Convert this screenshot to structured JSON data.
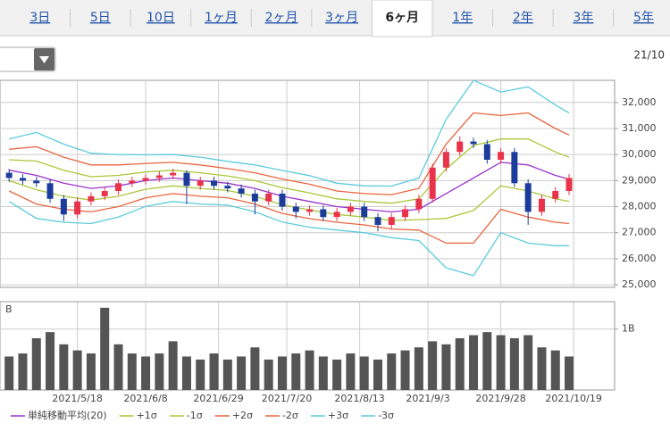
{
  "tabs": [
    "3日",
    "5日",
    "10日",
    "1ヶ月",
    "2ヶ月",
    "3ヶ月",
    "6ヶ月",
    "1年",
    "2年",
    "3年",
    "5年"
  ],
  "active_tab": 6,
  "date_label": "21/10",
  "chart_data": [
    {
      "type": "candlestick",
      "x": [
        0,
        3,
        6,
        9,
        12,
        15,
        18,
        21,
        24,
        27,
        30,
        33,
        36,
        39,
        42,
        45,
        48,
        51,
        54,
        57,
        60,
        63,
        66,
        69,
        72,
        75,
        78,
        81,
        84,
        87,
        90,
        93,
        96,
        99,
        102,
        105,
        108,
        111,
        114,
        117,
        120,
        123
      ],
      "open": [
        29300,
        29100,
        29000,
        28900,
        28300,
        27700,
        28200,
        28400,
        28600,
        28900,
        29000,
        29100,
        29200,
        29300,
        28800,
        29000,
        28800,
        28700,
        28500,
        28200,
        28500,
        28000,
        27800,
        27900,
        27600,
        27800,
        28000,
        27600,
        27300,
        27600,
        27900,
        28300,
        29500,
        30100,
        30500,
        30400,
        29800,
        30100,
        28900,
        27800,
        28300,
        28600
      ],
      "high": [
        29450,
        29250,
        29150,
        29050,
        28450,
        28350,
        28550,
        28750,
        29050,
        29150,
        29250,
        29350,
        29450,
        29400,
        29150,
        29150,
        28950,
        28850,
        28650,
        28650,
        28650,
        28150,
        28050,
        28050,
        27950,
        28150,
        28150,
        27750,
        27750,
        28050,
        28450,
        29650,
        30250,
        30700,
        30650,
        30550,
        30250,
        30250,
        29050,
        28450,
        28750,
        29250
      ],
      "low": [
        28950,
        28850,
        28750,
        28150,
        27450,
        27550,
        28050,
        28250,
        28450,
        28750,
        28850,
        28950,
        29050,
        28100,
        28650,
        28650,
        28550,
        28350,
        27700,
        28050,
        27850,
        27550,
        27650,
        27450,
        27450,
        27650,
        27450,
        27050,
        27150,
        27450,
        27750,
        28150,
        29350,
        29950,
        30250,
        29650,
        29650,
        28750,
        27300,
        27650,
        28150,
        28450
      ],
      "close": [
        29100,
        29000,
        28900,
        28300,
        27700,
        28200,
        28400,
        28600,
        28900,
        29000,
        29100,
        29200,
        29300,
        28800,
        29000,
        28800,
        28700,
        28500,
        28200,
        28500,
        28000,
        27800,
        27900,
        27600,
        27800,
        28000,
        27600,
        27300,
        27600,
        27900,
        28300,
        29500,
        30100,
        30500,
        30400,
        29800,
        30100,
        28900,
        27800,
        28300,
        28600,
        29100
      ],
      "up_color": "#e8334a",
      "down_color": "#1c3c9c",
      "bands": {
        "x": [
          0,
          6,
          12,
          18,
          24,
          30,
          36,
          42,
          48,
          54,
          60,
          66,
          72,
          78,
          84,
          90,
          96,
          102,
          108,
          114,
          120,
          123
        ],
        "series": [
          {
            "name": "単純移動平均(20)",
            "color": "#9933cc",
            "values": [
              29400,
              29200,
              28900,
              28700,
              28800,
              29000,
              29100,
              29000,
              28900,
              28700,
              28400,
              28200,
              28000,
              27900,
              27800,
              27900,
              28500,
              29100,
              29700,
              29600,
              29200,
              29050
            ]
          },
          {
            "name": "+1σ",
            "color": "#aac83a",
            "values": [
              29800,
              29750,
              29400,
              29150,
              29200,
              29330,
              29400,
              29300,
              29180,
              29000,
              28730,
              28530,
              28300,
              28200,
              28130,
              28300,
              29450,
              30350,
              30600,
              30600,
              30100,
              29900
            ]
          },
          {
            "name": "-1σ",
            "color": "#aac83a",
            "values": [
              29000,
              28650,
              28400,
              28250,
              28400,
              28670,
              28800,
              28700,
              28620,
              28400,
              28070,
              27870,
              27700,
              27600,
              27470,
              27500,
              27550,
              27850,
              28800,
              28600,
              28300,
              28200
            ]
          },
          {
            "name": "+2σ",
            "color": "#e8653f",
            "values": [
              30200,
              30300,
              29900,
              29600,
              29600,
              29660,
              29700,
              29600,
              29460,
              29300,
              29060,
              28860,
              28600,
              28500,
              28460,
              28700,
              30400,
              31600,
              31500,
              31600,
              31000,
              30750
            ]
          },
          {
            "name": "-2σ",
            "color": "#e8653f",
            "values": [
              28600,
              28100,
              27900,
              27800,
              28000,
              28340,
              28500,
              28400,
              28340,
              28100,
              27740,
              27540,
              27400,
              27300,
              27140,
              27100,
              26600,
              26600,
              27900,
              27600,
              27400,
              27350
            ]
          },
          {
            "name": "+3σ",
            "color": "#5ccbdc",
            "values": [
              30600,
              30850,
              30400,
              30050,
              30000,
              29990,
              30000,
              29900,
              29740,
              29600,
              29390,
              29190,
              28900,
              28800,
              28790,
              29100,
              31350,
              32850,
              32400,
              32600,
              31900,
              31600
            ]
          },
          {
            "name": "-3σ",
            "color": "#5ccbdc",
            "values": [
              28200,
              27550,
              27400,
              27350,
              27600,
              28010,
              28200,
              28100,
              28060,
              27800,
              27410,
              27210,
              27100,
              27000,
              26810,
              26700,
              25650,
              25350,
              27000,
              26600,
              26500,
              26500
            ]
          }
        ]
      },
      "xlim": [
        -2,
        133
      ],
      "xticks": [
        {
          "value": 15,
          "label": "2021/5/18"
        },
        {
          "value": 30,
          "label": "2021/6/8"
        },
        {
          "value": 46,
          "label": "2021/6/29"
        },
        {
          "value": 61,
          "label": "2021/7/20"
        },
        {
          "value": 77,
          "label": "2021/8/13"
        },
        {
          "value": 92,
          "label": "2021/9/3"
        },
        {
          "value": 108,
          "label": "2021/9/28"
        },
        {
          "value": 124,
          "label": "2021/10/19"
        }
      ],
      "ylim": [
        24900,
        32850
      ],
      "yticks": [
        {
          "value": 25000,
          "label": "25,000"
        },
        {
          "value": 26000,
          "label": "26,000"
        },
        {
          "value": 27000,
          "label": "27,000"
        },
        {
          "value": 28000,
          "label": "28,000"
        },
        {
          "value": 29000,
          "label": "29,000"
        },
        {
          "value": 30000,
          "label": "30,000"
        },
        {
          "value": 31000,
          "label": "31,000"
        },
        {
          "value": 32000,
          "label": "32,000"
        }
      ],
      "grid": true
    },
    {
      "type": "bar",
      "panel_label": "B",
      "x": [
        0,
        3,
        6,
        9,
        12,
        15,
        18,
        21,
        24,
        27,
        30,
        33,
        36,
        39,
        42,
        45,
        48,
        51,
        54,
        57,
        60,
        63,
        66,
        69,
        72,
        75,
        78,
        81,
        84,
        87,
        90,
        93,
        96,
        99,
        102,
        105,
        108,
        111,
        114,
        117,
        120,
        123
      ],
      "values": [
        550000000,
        600000000,
        850000000,
        950000000,
        750000000,
        650000000,
        600000000,
        1350000000,
        750000000,
        600000000,
        550000000,
        600000000,
        800000000,
        550000000,
        500000000,
        600000000,
        500000000,
        550000000,
        700000000,
        500000000,
        550000000,
        600000000,
        650000000,
        550000000,
        500000000,
        600000000,
        550000000,
        500000000,
        600000000,
        650000000,
        700000000,
        800000000,
        750000000,
        850000000,
        900000000,
        950000000,
        900000000,
        850000000,
        900000000,
        700000000,
        650000000,
        550000000
      ],
      "color": "#555555",
      "xlim": [
        -2,
        133
      ],
      "ylim": [
        0,
        1450000000
      ],
      "yticks": [
        {
          "value": 1000000000,
          "label": "1B"
        }
      ],
      "grid": true
    }
  ]
}
